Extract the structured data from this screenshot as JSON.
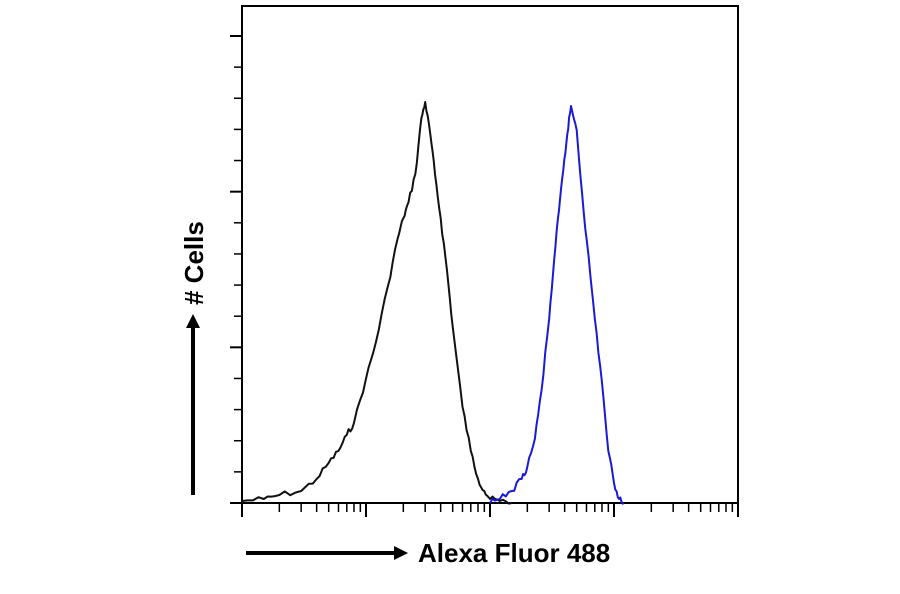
{
  "chart_data": {
    "type": "line",
    "title": "",
    "xlabel": "Alexa Fluor 488",
    "ylabel": "# Cells",
    "x_scale": "log",
    "xlim": [
      10,
      100000
    ],
    "ylim": [
      0,
      100
    ],
    "grid": false,
    "legend": "none",
    "series": [
      {
        "color": "#111111",
        "x": [
          10,
          15,
          20,
          30,
          40,
          50,
          60,
          70,
          80,
          100,
          120,
          150,
          180,
          200,
          220,
          250,
          280,
          300,
          330,
          360,
          400,
          450,
          500,
          600,
          700,
          800,
          900,
          1000,
          1200,
          1500
        ],
        "y": [
          0.5,
          1,
          2,
          3,
          6,
          10,
          13,
          17,
          20,
          31,
          40,
          54,
          66,
          71,
          75,
          82,
          96,
          100,
          92,
          82,
          71,
          58,
          44,
          24,
          13,
          6,
          3,
          1,
          0.5,
          0
        ]
      },
      {
        "color": "#1a1ad6",
        "x": [
          1000,
          1200,
          1500,
          1800,
          2000,
          2300,
          2600,
          3000,
          3300,
          3600,
          3900,
          4200,
          4500,
          5000,
          5500,
          6000,
          7000,
          8000,
          9000,
          10000,
          11000,
          12000
        ],
        "y": [
          0,
          1,
          3,
          6,
          9,
          16,
          28,
          46,
          61,
          73,
          83,
          92,
          99,
          93,
          78,
          66,
          46,
          30,
          13,
          5,
          1,
          0
        ]
      }
    ]
  },
  "colors": {
    "axis": "#000000",
    "black_series": "#111111",
    "blue_series": "#1a1ad6"
  }
}
